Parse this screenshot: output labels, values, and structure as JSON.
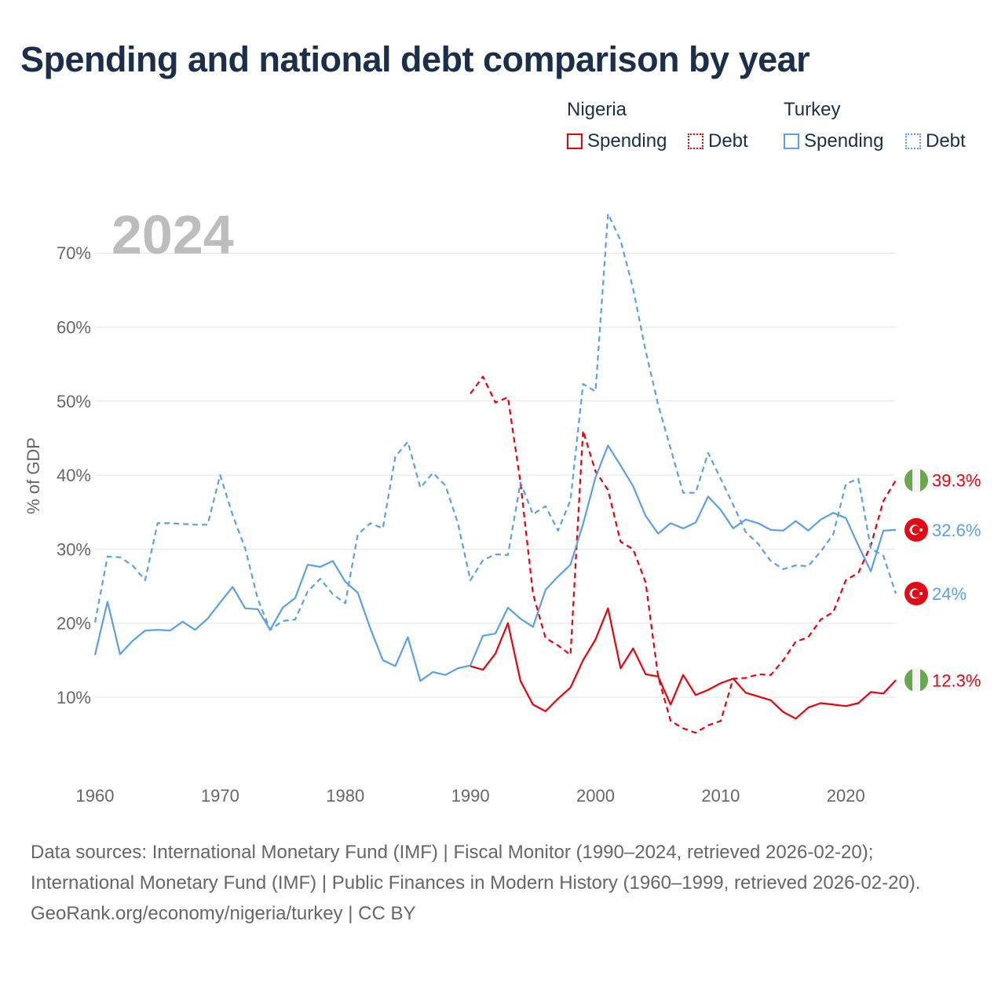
{
  "title": "Spending and national debt comparison by year",
  "legend": {
    "groups": [
      {
        "country": "Nigeria",
        "spending_label": "Spending",
        "debt_label": "Debt",
        "color": "#e8000b"
      },
      {
        "country": "Turkey",
        "spending_label": "Spending",
        "debt_label": "Debt",
        "color": "#5aa0e6"
      }
    ]
  },
  "year_watermark": "2024",
  "footer": {
    "sources": "Data sources: International Monetary Fund (IMF) | Fiscal Monitor (1990–2024, retrieved 2026-02-20); International Monetary Fund (IMF) | Public Finances in Modern History (1960–1999, retrieved 2026-02-20).",
    "credit": "GeoRank.org/economy/nigeria/turkey | CC BY"
  },
  "chart_data": {
    "type": "line",
    "title": "Spending and national debt comparison by year",
    "ylabel": "% of GDP",
    "xlabel": "",
    "xlim": [
      1960,
      2024
    ],
    "ylim": [
      0,
      75
    ],
    "x_ticks": [
      1960,
      1970,
      1980,
      1990,
      2000,
      2010,
      2020
    ],
    "y_ticks": [
      10,
      20,
      30,
      40,
      50,
      60,
      70
    ],
    "y_tick_labels": [
      "10%",
      "20%",
      "30%",
      "40%",
      "50%",
      "60%",
      "70%"
    ],
    "series": [
      {
        "name": "Nigeria Debt",
        "country": "Nigeria",
        "metric": "Debt",
        "color": "#e8000b",
        "dashed": true,
        "flag": "nigeria",
        "end_label": "39.3%",
        "x": [
          1990,
          1991,
          1992,
          1993,
          1994,
          1995,
          1996,
          1997,
          1998,
          1999,
          2000,
          2001,
          2002,
          2003,
          2004,
          2005,
          2006,
          2007,
          2008,
          2009,
          2010,
          2011,
          2012,
          2013,
          2014,
          2015,
          2016,
          2017,
          2018,
          2019,
          2020,
          2021,
          2022,
          2023,
          2024
        ],
        "values": [
          51,
          53.3,
          49.8,
          50.5,
          39,
          24,
          18,
          17,
          15.7,
          46,
          40.5,
          38,
          31,
          30,
          25.5,
          12.8,
          6.8,
          5.8,
          5.2,
          6.2,
          6.8,
          12.5,
          12.6,
          13.1,
          13,
          15,
          17.5,
          18.1,
          20.5,
          21.5,
          25.8,
          26.8,
          30.5,
          36.5,
          39.3
        ]
      },
      {
        "name": "Nigeria Spending",
        "country": "Nigeria",
        "metric": "Spending",
        "color": "#e8000b",
        "dashed": false,
        "flag": "nigeria",
        "end_label": "12.3%",
        "x": [
          1990,
          1991,
          1992,
          1993,
          1994,
          1995,
          1996,
          1997,
          1998,
          1999,
          2000,
          2001,
          2002,
          2003,
          2004,
          2005,
          2006,
          2007,
          2008,
          2009,
          2010,
          2011,
          2012,
          2013,
          2014,
          2015,
          2016,
          2017,
          2018,
          2019,
          2020,
          2021,
          2022,
          2023,
          2024
        ],
        "values": [
          14.2,
          13.7,
          15.9,
          20,
          12.2,
          9,
          8.1,
          9.8,
          11.3,
          15,
          17.8,
          22,
          13.9,
          16.6,
          13.1,
          12.8,
          9,
          13,
          10.3,
          11,
          11.9,
          12.5,
          10.6,
          10.1,
          9.6,
          8,
          7.1,
          8.6,
          9.2,
          9,
          8.8,
          9.2,
          10.7,
          10.5,
          12.3
        ]
      },
      {
        "name": "Turkey Spending",
        "country": "Turkey",
        "metric": "Spending",
        "color": "#5aa0e6",
        "dashed": false,
        "flag": "turkey",
        "end_label": "32.6%",
        "x": [
          1960,
          1961,
          1962,
          1963,
          1964,
          1965,
          1966,
          1967,
          1968,
          1969,
          1970,
          1971,
          1972,
          1973,
          1974,
          1975,
          1976,
          1977,
          1978,
          1979,
          1980,
          1981,
          1982,
          1983,
          1984,
          1985,
          1986,
          1987,
          1988,
          1989,
          1990,
          1991,
          1992,
          1993,
          1994,
          1995,
          1996,
          1997,
          1998,
          1999,
          2000,
          2001,
          2002,
          2003,
          2004,
          2005,
          2006,
          2007,
          2008,
          2009,
          2010,
          2011,
          2012,
          2013,
          2014,
          2015,
          2016,
          2017,
          2018,
          2019,
          2020,
          2021,
          2022,
          2023,
          2024
        ],
        "values": [
          15.7,
          22.9,
          15.8,
          17.6,
          19,
          19.1,
          19,
          20.2,
          19.1,
          20.6,
          22.8,
          24.9,
          22,
          21.9,
          19.1,
          22.1,
          23.4,
          27.9,
          27.6,
          28.4,
          25.6,
          24.1,
          19.3,
          15,
          14.2,
          18.1,
          12.2,
          13.4,
          13,
          13.9,
          14.3,
          18.3,
          18.6,
          22.1,
          20.6,
          19.5,
          24.5,
          26.3,
          27.9,
          33.4,
          39.7,
          44,
          41.3,
          38.5,
          34.5,
          32.1,
          33.5,
          32.8,
          33.6,
          37.1,
          35.3,
          32.8,
          34,
          33.5,
          32.6,
          32.5,
          33.8,
          32.5,
          34,
          34.9,
          34.2,
          30.5,
          27,
          32.5,
          32.6
        ]
      },
      {
        "name": "Turkey Debt",
        "country": "Turkey",
        "metric": "Debt",
        "color": "#5aa0e6",
        "dashed": true,
        "flag": "turkey",
        "end_label": "24%",
        "x": [
          1960,
          1961,
          1962,
          1963,
          1964,
          1965,
          1966,
          1967,
          1968,
          1969,
          1970,
          1971,
          1972,
          1973,
          1974,
          1975,
          1976,
          1977,
          1978,
          1979,
          1980,
          1981,
          1982,
          1983,
          1984,
          1985,
          1986,
          1987,
          1988,
          1989,
          1990,
          1991,
          1992,
          1993,
          1994,
          1995,
          1996,
          1997,
          1998,
          1999,
          2000,
          2001,
          2002,
          2003,
          2004,
          2005,
          2006,
          2007,
          2008,
          2009,
          2010,
          2011,
          2012,
          2013,
          2014,
          2015,
          2016,
          2017,
          2018,
          2019,
          2020,
          2021,
          2022,
          2023,
          2024
        ],
        "values": [
          20.1,
          29,
          28.9,
          27.8,
          25.8,
          33.5,
          33.5,
          33.4,
          33.3,
          33.3,
          40,
          34.6,
          30.1,
          23.3,
          19.1,
          20.3,
          20.5,
          24.3,
          26,
          23.9,
          22.7,
          32,
          33.5,
          32.8,
          42.5,
          44.5,
          38.3,
          40.3,
          38.6,
          33.5,
          25.8,
          28.5,
          29.3,
          29.2,
          39,
          34.7,
          35.8,
          32.5,
          36.6,
          52.3,
          51.3,
          75.3,
          71.7,
          65.2,
          56.8,
          49.5,
          43.6,
          37.6,
          37.6,
          43,
          39.5,
          36,
          32.3,
          30.7,
          28.4,
          27.3,
          27.8,
          27.7,
          29.7,
          32,
          38.8,
          39.5,
          30.1,
          29.1,
          24
        ]
      }
    ]
  }
}
